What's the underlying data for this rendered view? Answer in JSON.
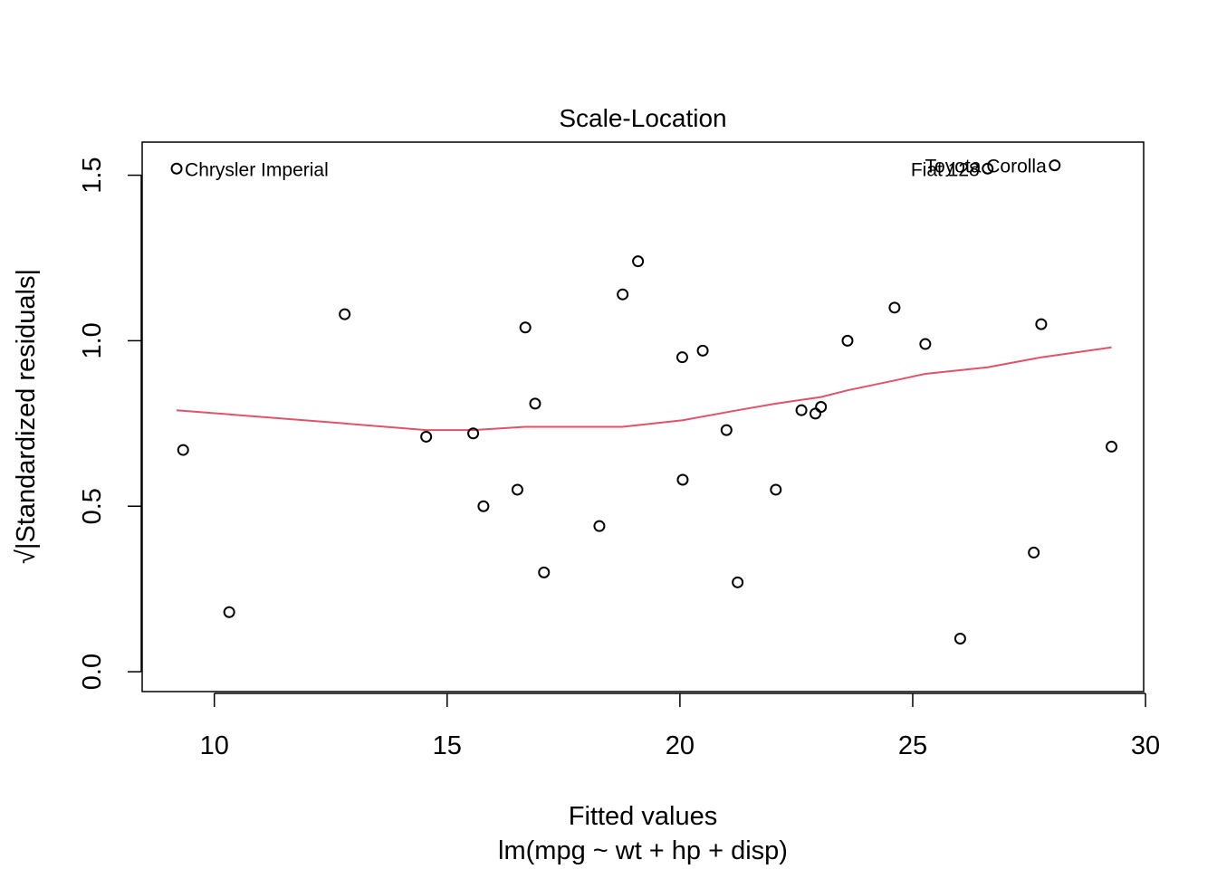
{
  "chart_data": {
    "type": "scatter",
    "title": "Scale-Location",
    "xlabel": "Fitted values",
    "subtitle": "lm(mpg ~ wt + hp + disp)",
    "ylabel": "√|Standardized residuals|",
    "xlim": [
      8.45,
      29.96
    ],
    "ylim": [
      -0.06,
      1.6
    ],
    "x_ticks": [
      "10",
      "15",
      "20",
      "25",
      "30"
    ],
    "y_ticks": [
      "0.0",
      "0.5",
      "1.0",
      "1.5"
    ],
    "grid": false,
    "legend": "none",
    "colors": {
      "points": "#000000",
      "smooth": "#DF536B",
      "frame": "#000000"
    },
    "points": [
      {
        "x": 9.19,
        "y": 1.52
      },
      {
        "x": 9.33,
        "y": 0.67
      },
      {
        "x": 10.32,
        "y": 0.18
      },
      {
        "x": 12.8,
        "y": 1.08
      },
      {
        "x": 14.55,
        "y": 0.71
      },
      {
        "x": 15.56,
        "y": 0.72
      },
      {
        "x": 15.78,
        "y": 0.5
      },
      {
        "x": 16.51,
        "y": 0.55
      },
      {
        "x": 16.68,
        "y": 1.04
      },
      {
        "x": 16.89,
        "y": 0.81
      },
      {
        "x": 17.08,
        "y": 0.3
      },
      {
        "x": 18.27,
        "y": 0.44
      },
      {
        "x": 18.77,
        "y": 1.14
      },
      {
        "x": 19.1,
        "y": 1.24
      },
      {
        "x": 20.05,
        "y": 0.95
      },
      {
        "x": 20.06,
        "y": 0.58
      },
      {
        "x": 20.49,
        "y": 0.97
      },
      {
        "x": 21.0,
        "y": 0.73
      },
      {
        "x": 21.24,
        "y": 0.27
      },
      {
        "x": 22.06,
        "y": 0.55
      },
      {
        "x": 22.61,
        "y": 0.79
      },
      {
        "x": 22.91,
        "y": 0.78
      },
      {
        "x": 23.03,
        "y": 0.8
      },
      {
        "x": 23.6,
        "y": 1.0
      },
      {
        "x": 24.61,
        "y": 1.1
      },
      {
        "x": 25.27,
        "y": 0.99
      },
      {
        "x": 26.02,
        "y": 0.1
      },
      {
        "x": 26.61,
        "y": 1.52
      },
      {
        "x": 27.6,
        "y": 0.36
      },
      {
        "x": 27.76,
        "y": 1.05
      },
      {
        "x": 28.05,
        "y": 1.53
      },
      {
        "x": 29.27,
        "y": 0.68
      }
    ],
    "smooth_line": [
      {
        "x": 9.19,
        "y": 0.79
      },
      {
        "x": 12.8,
        "y": 0.75
      },
      {
        "x": 14.55,
        "y": 0.73
      },
      {
        "x": 15.56,
        "y": 0.73
      },
      {
        "x": 16.68,
        "y": 0.74
      },
      {
        "x": 18.77,
        "y": 0.74
      },
      {
        "x": 20.06,
        "y": 0.76
      },
      {
        "x": 21.24,
        "y": 0.79
      },
      {
        "x": 22.06,
        "y": 0.81
      },
      {
        "x": 23.03,
        "y": 0.83
      },
      {
        "x": 23.6,
        "y": 0.85
      },
      {
        "x": 24.61,
        "y": 0.88
      },
      {
        "x": 25.27,
        "y": 0.9
      },
      {
        "x": 26.61,
        "y": 0.92
      },
      {
        "x": 27.76,
        "y": 0.95
      },
      {
        "x": 29.27,
        "y": 0.98
      }
    ],
    "annotations": [
      {
        "text": "Chrysler Imperial",
        "x": 9.19,
        "y": 1.52,
        "side": "right"
      },
      {
        "text": "Toyota Corolla",
        "x": 28.05,
        "y": 1.53,
        "side": "left"
      },
      {
        "text": "Fiat 128",
        "x": 26.61,
        "y": 1.52,
        "side": "left"
      }
    ]
  }
}
